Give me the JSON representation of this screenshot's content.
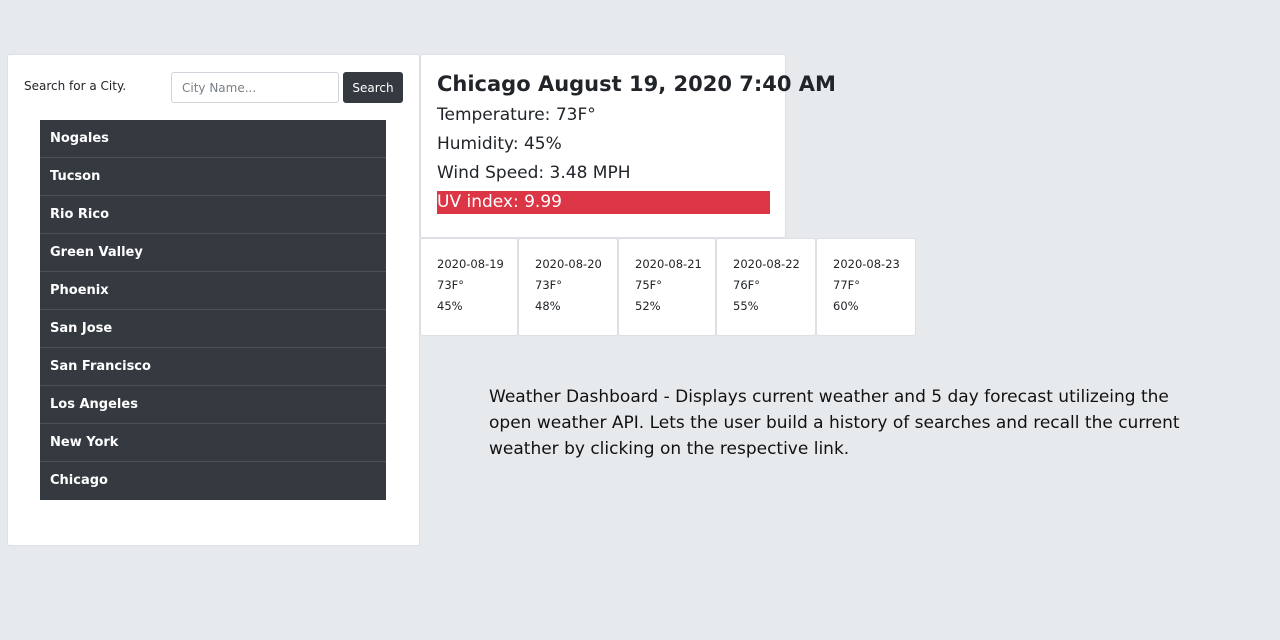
{
  "search": {
    "label": "Search for a City.",
    "placeholder": "City Name...",
    "button_label": "Search"
  },
  "cities": [
    "Nogales",
    "Tucson",
    "Rio Rico",
    "Green Valley",
    "Phoenix",
    "San Jose",
    "San Francisco",
    "Los Angeles",
    "New York",
    "Chicago"
  ],
  "current": {
    "title": "Chicago August 19, 2020 7:40 AM",
    "temperature": "Temperature: 73F°",
    "humidity": "Humidity: 45%",
    "wind": "Wind Speed: 3.48 MPH",
    "uv": "UV index: 9.99",
    "uv_color": "#dc3545"
  },
  "forecast": [
    {
      "date": "2020-08-19",
      "temp": "73F°",
      "humidity": "45%"
    },
    {
      "date": "2020-08-20",
      "temp": "73F°",
      "humidity": "48%"
    },
    {
      "date": "2020-08-21",
      "temp": "75F°",
      "humidity": "52%"
    },
    {
      "date": "2020-08-22",
      "temp": "76F°",
      "humidity": "55%"
    },
    {
      "date": "2020-08-23",
      "temp": "77F°",
      "humidity": "60%"
    }
  ],
  "description": "Weather Dashboard - Displays current weather and 5 day forecast utilizeing the open weather API. Lets the user build a history of searches and recall the current weather by clicking on the respective link."
}
